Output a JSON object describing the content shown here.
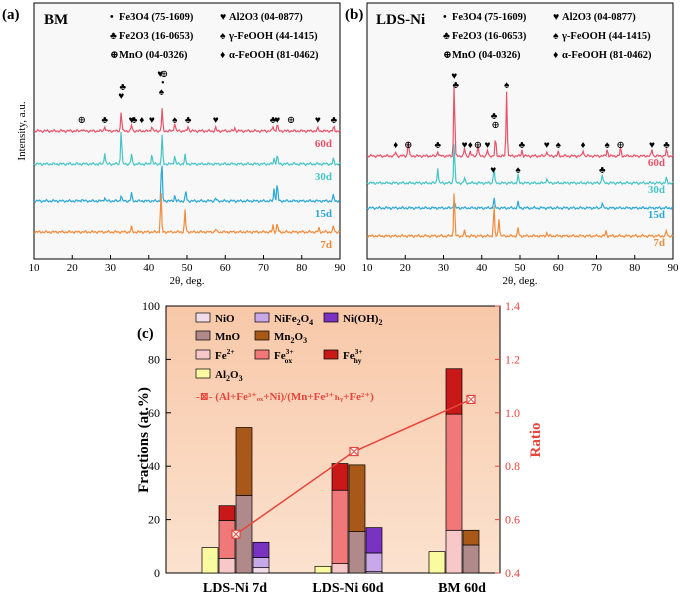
{
  "chart_data": [
    {
      "type": "line",
      "panel_label": "(a)",
      "title": "BM",
      "xlabel": "2θ, deg.",
      "ylabel": "Intensity, a.u.",
      "xlim": [
        10,
        90
      ],
      "xticks": [
        "10",
        "20",
        "30",
        "40",
        "50",
        "60",
        "70",
        "80",
        "90"
      ],
      "series": [
        {
          "name": "60d",
          "color": "#e8536a"
        },
        {
          "name": "30d",
          "color": "#46c5c5"
        },
        {
          "name": "15d",
          "color": "#2aa7d8"
        },
        {
          "name": "7d",
          "color": "#f08c3c"
        }
      ],
      "legend": [
        {
          "symbol": "•",
          "text": "Fe3O4 (75-1609)"
        },
        {
          "symbol": "♥",
          "text": "Al2O3 (04-0877)"
        },
        {
          "symbol": "♣",
          "text": "Fe2O3 (16-0653)"
        },
        {
          "symbol": "♠",
          "text": "γ-FeOOH (44-1415)"
        },
        {
          "symbol": "⊕",
          "text": "MnO (04-0326)"
        },
        {
          "symbol": "♦",
          "text": "α-FeOOH (81-0462)"
        }
      ],
      "peak_markers": [
        {
          "x": 22.5,
          "symbol": "⊕"
        },
        {
          "x": 28.5,
          "symbol": "♣"
        },
        {
          "x": 32.8,
          "symbol": "♥"
        },
        {
          "x": 33.2,
          "symbol": "♣"
        },
        {
          "x": 35.5,
          "symbol": "♥"
        },
        {
          "x": 36.2,
          "symbol": "♣"
        },
        {
          "x": 38.2,
          "symbol": "♦"
        },
        {
          "x": 40.8,
          "symbol": "♥"
        },
        {
          "x": 43.0,
          "symbol": "♥"
        },
        {
          "x": 43.3,
          "symbol": "♠"
        },
        {
          "x": 43.7,
          "symbol": "•"
        },
        {
          "x": 44.0,
          "symbol": "⊕"
        },
        {
          "x": 46.8,
          "symbol": "♠"
        },
        {
          "x": 50.3,
          "symbol": "♣"
        },
        {
          "x": 57.5,
          "symbol": "♥"
        },
        {
          "x": 72.5,
          "symbol": "♣"
        },
        {
          "x": 73.6,
          "symbol": "♥"
        },
        {
          "x": 77.2,
          "symbol": "⊕"
        },
        {
          "x": 84.2,
          "symbol": "♥"
        },
        {
          "x": 88.4,
          "symbol": "♣"
        }
      ]
    },
    {
      "type": "line",
      "panel_label": "(b)",
      "title": "LDS-Ni",
      "xlabel": "2θ, deg.",
      "xlim": [
        10,
        90
      ],
      "xticks": [
        "10",
        "20",
        "30",
        "40",
        "50",
        "60",
        "70",
        "80",
        "90"
      ],
      "series": [
        {
          "name": "60d",
          "color": "#e8536a"
        },
        {
          "name": "30d",
          "color": "#46c5c5"
        },
        {
          "name": "15d",
          "color": "#2aa7d8"
        },
        {
          "name": "7d",
          "color": "#f08c3c"
        }
      ],
      "legend": [
        {
          "symbol": "•",
          "text": "Fe3O4 (75-1609)"
        },
        {
          "symbol": "♥",
          "text": "Al2O3 (04-0877)"
        },
        {
          "symbol": "♣",
          "text": "Fe2O3 (16-0653)"
        },
        {
          "symbol": "♠",
          "text": "γ-FeOOH (44-1415)"
        },
        {
          "symbol": "⊕",
          "text": "MnO (04-0326)"
        },
        {
          "symbol": "♦",
          "text": "α-FeOOH (81-0462)"
        }
      ],
      "peak_markers": [
        {
          "x": 17.5,
          "symbol": "♦"
        },
        {
          "x": 20.8,
          "symbol": "⊕"
        },
        {
          "x": 28.5,
          "symbol": "♣"
        },
        {
          "x": 32.8,
          "symbol": "♥"
        },
        {
          "x": 33.2,
          "symbol": "♣"
        },
        {
          "x": 35.5,
          "symbol": "♥"
        },
        {
          "x": 37.0,
          "symbol": "♦"
        },
        {
          "x": 39.0,
          "symbol": "⊕"
        },
        {
          "x": 41.5,
          "symbol": "♥"
        },
        {
          "x": 43.2,
          "symbol": "♣"
        },
        {
          "x": 43.6,
          "symbol": "⊕"
        },
        {
          "x": 46.5,
          "symbol": "♠"
        },
        {
          "x": 50.5,
          "symbol": "♣"
        },
        {
          "x": 57.0,
          "symbol": "♥"
        },
        {
          "x": 60.0,
          "symbol": "♠"
        },
        {
          "x": 66.5,
          "symbol": "♦"
        },
        {
          "x": 72.8,
          "symbol": "♠"
        },
        {
          "x": 76.3,
          "symbol": "⊕"
        },
        {
          "x": 84.5,
          "symbol": "♥"
        },
        {
          "x": 88.3,
          "symbol": "♣"
        },
        {
          "x": 43.0,
          "symbol": "♥"
        },
        {
          "x": 49.5,
          "symbol": "♠"
        },
        {
          "x": 71.5,
          "symbol": "♣"
        }
      ]
    },
    {
      "type": "bar",
      "panel_label": "(c)",
      "ylabel": "Fractions (at.%)",
      "y2label": "Ratio",
      "ylim": [
        0,
        100
      ],
      "y2lim": [
        0.4,
        1.4
      ],
      "yticks": [
        "0",
        "20",
        "40",
        "60",
        "80",
        "100"
      ],
      "y2ticks": [
        "0.4",
        "0.6",
        "0.8",
        "1.0",
        "1.2",
        "1.4"
      ],
      "categories": [
        "LDS-Ni 7d",
        "LDS-Ni 60d",
        "BM 60d"
      ],
      "legend": [
        {
          "key": "NiO",
          "color": "#f0dceb"
        },
        {
          "key": "NiFe2O4",
          "color": "#c8a8e8"
        },
        {
          "key": "Ni(OH)2",
          "color": "#7a32c0"
        },
        {
          "key": "MnO",
          "color": "#b08a8a"
        },
        {
          "key": "Mn2O3",
          "color": "#a85818"
        },
        {
          "key": "Fe2+",
          "color": "#f8c8c8"
        },
        {
          "key": "Fe3+ox",
          "color": "#f07878"
        },
        {
          "key": "Fe3+hy",
          "color": "#c81818"
        },
        {
          "key": "Al2O3",
          "color": "#fafaa0"
        }
      ],
      "legend_labels": {
        "nio": "NiO",
        "nife": "NiFe",
        "nife_sub": "2",
        "nife_o": "O",
        "nife_sub2": "4",
        "nioh": "Ni(OH)",
        "nioh_sub": "2",
        "mno": "MnO",
        "mn2o3": "Mn",
        "mn2o3_sub": "2",
        "mn2o3_o": "O",
        "mn2o3_sub2": "3",
        "fe2": "Fe",
        "fe2_sup": "2+",
        "fe3ox": "Fe",
        "fe3ox_sup": "3+",
        "fe3ox_sub": "ox",
        "fe3hy": "Fe",
        "fe3hy_sup": "3+",
        "fe3hy_sub": "hy",
        "al": "Al",
        "al_sub": "2",
        "al_o": "O",
        "al_sub2": "3",
        "ratio_line": "-⊠- (Al+Fe³⁺ₒₓ+Ni)/(Mn+Fe³⁺ₕᵧ+Fe²⁺)"
      },
      "stacks": [
        {
          "category": "LDS-Ni 7d",
          "al2o3": 9.5,
          "fe": {
            "fe2": 5.5,
            "fe3ox": 14.2,
            "fe3hy": 5.5
          },
          "mn": {
            "mno": 29,
            "mn2o3": 25.5
          },
          "ni": {
            "nio": 2,
            "nife2o4": 3.8,
            "nioh2": 5.7
          }
        },
        {
          "category": "LDS-Ni 60d",
          "al2o3": 2.5,
          "fe": {
            "fe2": 3.5,
            "fe3ox": 27.5,
            "fe3hy": 10
          },
          "mn": {
            "mno": 15.5,
            "mn2o3": 25
          },
          "ni": {
            "nio": 0.5,
            "nife2o4": 7,
            "nioh2": 9.5
          }
        },
        {
          "category": "BM 60d",
          "al2o3": 8,
          "fe": {
            "fe2": 16,
            "fe3ox": 43.5,
            "fe3hy": 17
          },
          "mn": {
            "mno": 10.5,
            "mn2o3": 5.5
          },
          "ni": {
            "nio": 0,
            "nife2o4": 0,
            "nioh2": 0
          }
        }
      ],
      "ratio_series": {
        "name": "(Al+Fe3+ox+Ni)/(Mn+Fe3+hy+Fe2+)",
        "values": [
          0.545,
          0.855,
          1.05
        ],
        "color": "#e8453c"
      }
    }
  ]
}
